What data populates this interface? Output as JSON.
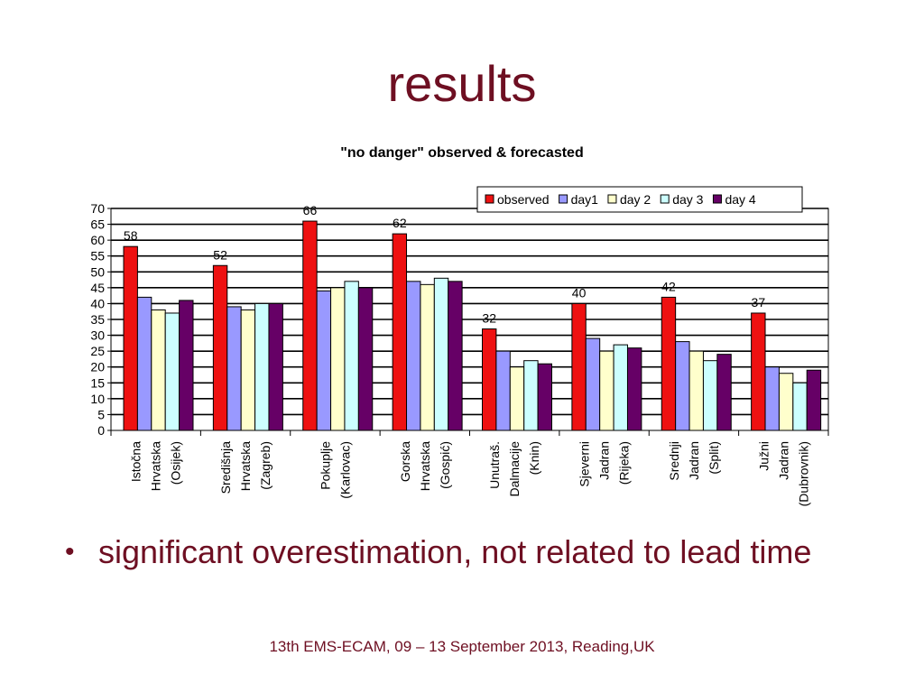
{
  "slide": {
    "title": "results",
    "bullet": "significant overestimation, not related to lead time",
    "footer": "13th EMS-ECAM, 09 – 13 September 2013, Reading,UK"
  },
  "chart_data": {
    "type": "bar",
    "title": "\"no danger\" observed & forecasted",
    "xlabel": "",
    "ylabel": "",
    "ylim": [
      0,
      70
    ],
    "ytick_step": 5,
    "grid": true,
    "legend": "top-right",
    "categories": [
      [
        "Istočna",
        "Hrvatska",
        "(Osijek)"
      ],
      [
        "Središnja",
        "Hrvatska",
        "(Zagreb)"
      ],
      [
        "Pokuplje",
        "(Karlovac)"
      ],
      [
        "Gorska",
        "Hrvatska",
        "(Gospić)"
      ],
      [
        "Unutraš.",
        "Dalmacije",
        "(Knin)"
      ],
      [
        "Sjeverni",
        "Jadran",
        "(Rijeka)"
      ],
      [
        "Srednji",
        "Jadran",
        "(Split)"
      ],
      [
        "Južni",
        "Jadran",
        "(Dubrovnik)"
      ]
    ],
    "series": [
      {
        "name": "observed",
        "color": "#ee1111",
        "values": [
          58,
          52,
          66,
          62,
          32,
          40,
          42,
          37
        ],
        "data_labels": true
      },
      {
        "name": "day1",
        "color": "#9999ff",
        "values": [
          42,
          39,
          44,
          47,
          25,
          29,
          28,
          20
        ]
      },
      {
        "name": "day 2",
        "color": "#ffffcc",
        "values": [
          38,
          38,
          45,
          46,
          20,
          25,
          25,
          18
        ]
      },
      {
        "name": "day 3",
        "color": "#ccffff",
        "values": [
          37,
          40,
          47,
          48,
          22,
          27,
          22,
          15
        ]
      },
      {
        "name": "day 4",
        "color": "#660066",
        "values": [
          41,
          40,
          45,
          47,
          21,
          26,
          24,
          19
        ]
      }
    ]
  }
}
